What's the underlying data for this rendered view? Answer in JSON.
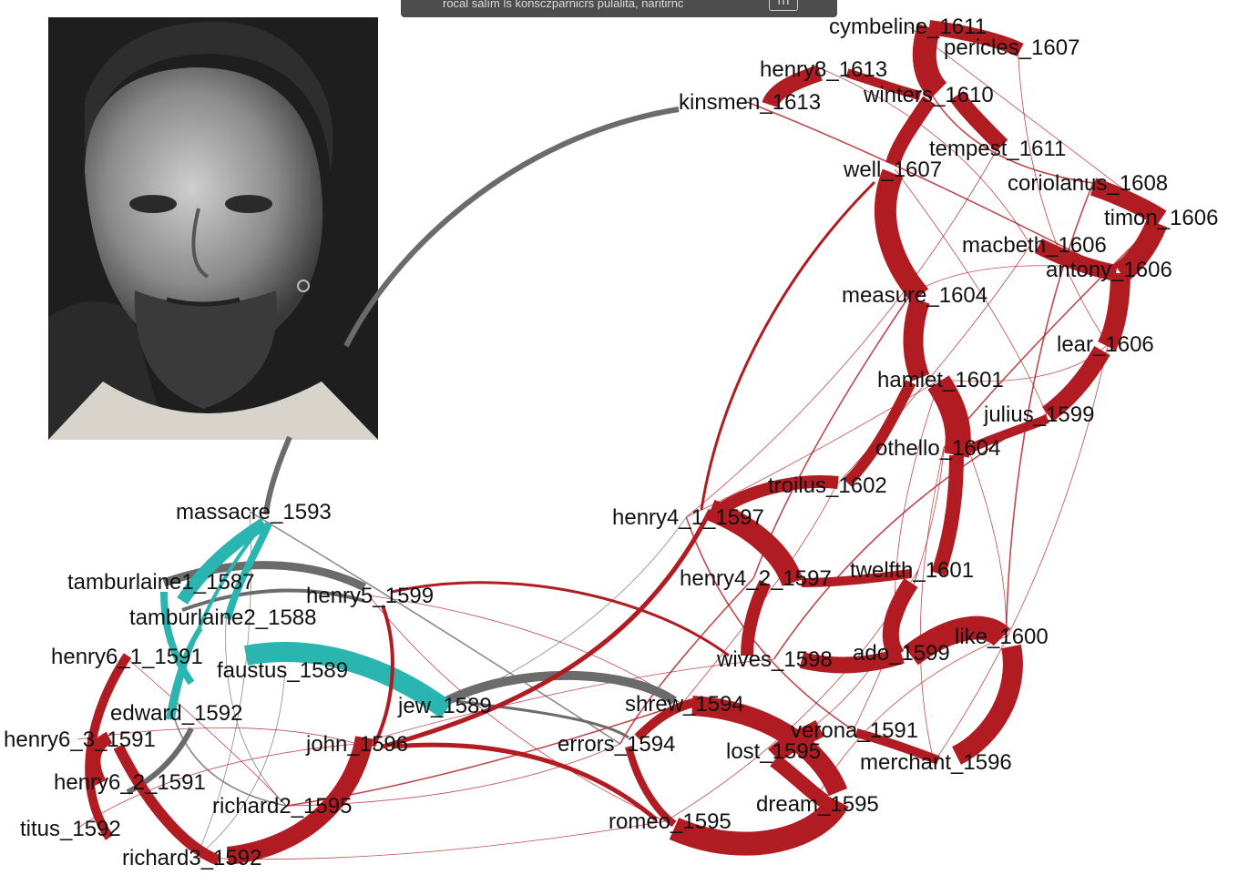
{
  "banner": {
    "text": "rocal salím ls konsczparnicrs pulalita, naritirnc",
    "button": "ıTı"
  },
  "portrait": {
    "description_icon": "portrait-photo-icon"
  },
  "colors": {
    "shakespeare": "#b01c22",
    "marlowe": "#2ab5b0",
    "bridge": "#6b6b6b"
  },
  "nodes": [
    {
      "id": "cymbeline_1611",
      "label": "cymbeline_1611"
    },
    {
      "id": "pericles_1607",
      "label": "pericles_1607"
    },
    {
      "id": "henry8_1613",
      "label": "henry8_1613"
    },
    {
      "id": "winters_1610",
      "label": "winters_1610"
    },
    {
      "id": "kinsmen_1613",
      "label": "kinsmen_1613"
    },
    {
      "id": "tempest_1611",
      "label": "tempest_1611"
    },
    {
      "id": "well_1607",
      "label": "well_1607"
    },
    {
      "id": "coriolanus_1608",
      "label": "coriolanus_1608"
    },
    {
      "id": "timon_1606",
      "label": "timon_1606"
    },
    {
      "id": "macbeth_1606",
      "label": "macbeth_1606"
    },
    {
      "id": "antony_1606",
      "label": "antony_1606"
    },
    {
      "id": "measure_1604",
      "label": "measure_1604"
    },
    {
      "id": "lear_1606",
      "label": "lear_1606"
    },
    {
      "id": "hamlet_1601",
      "label": "hamlet_1601"
    },
    {
      "id": "julius_1599",
      "label": "julius_1599"
    },
    {
      "id": "othello_1604",
      "label": "othello_1604"
    },
    {
      "id": "troilus_1602",
      "label": "troilus_1602"
    },
    {
      "id": "henry4_1_1597",
      "label": "henry4_1_1597"
    },
    {
      "id": "henry4_2_1597",
      "label": "henry4_2_1597"
    },
    {
      "id": "twelfth_1601",
      "label": "twelfth_1601"
    },
    {
      "id": "like_1600",
      "label": "like_1600"
    },
    {
      "id": "ado_1599",
      "label": "ado_1599"
    },
    {
      "id": "wives_1598",
      "label": "wives_1598"
    },
    {
      "id": "shrew_1594",
      "label": "shrew_1594"
    },
    {
      "id": "verona_1591",
      "label": "verona_1591"
    },
    {
      "id": "lost_1595",
      "label": "lost_1595"
    },
    {
      "id": "merchant_1596",
      "label": "merchant_1596"
    },
    {
      "id": "errors_1594",
      "label": "errors_1594"
    },
    {
      "id": "dream_1595",
      "label": "dream_1595"
    },
    {
      "id": "romeo_1595",
      "label": "romeo_1595"
    },
    {
      "id": "massacre_1593",
      "label": "massacre_1593"
    },
    {
      "id": "tamburlaine1_1587",
      "label": "tamburlaine1_1587"
    },
    {
      "id": "henry5_1599",
      "label": "henry5_1599"
    },
    {
      "id": "tamburlaine2_1588",
      "label": "tamburlaine2_1588"
    },
    {
      "id": "henry6_1_1591",
      "label": "henry6_1_1591"
    },
    {
      "id": "faustus_1589",
      "label": "faustus_1589"
    },
    {
      "id": "edward_1592",
      "label": "edward_1592"
    },
    {
      "id": "jew_1589",
      "label": "jew_1589"
    },
    {
      "id": "henry6_3_1591",
      "label": "henry6_3_1591"
    },
    {
      "id": "john_1596",
      "label": "john_1596"
    },
    {
      "id": "henry6_2_1591",
      "label": "henry6_2_1591"
    },
    {
      "id": "richard2_1595",
      "label": "richard2_1595"
    },
    {
      "id": "titus_1592",
      "label": "titus_1592"
    },
    {
      "id": "richard3_1592",
      "label": "richard3_1592"
    }
  ]
}
